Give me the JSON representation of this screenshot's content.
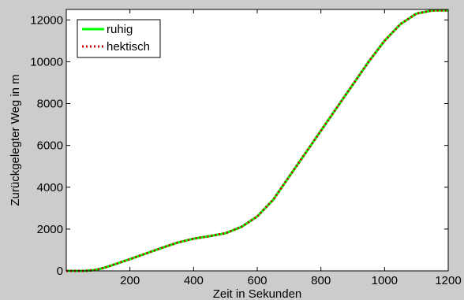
{
  "chart_data": {
    "type": "line",
    "title": "",
    "xlabel": "Zeit in Sekunden",
    "ylabel": "Zurückgelegter Weg in m",
    "xlim": [
      0,
      1200
    ],
    "ylim": [
      0,
      12500
    ],
    "x_ticks": [
      200,
      400,
      600,
      800,
      1000,
      1200
    ],
    "y_ticks": [
      0,
      2000,
      4000,
      6000,
      8000,
      10000,
      12000
    ],
    "grid": false,
    "legend_position": "top-left",
    "x": [
      0,
      60,
      90,
      120,
      150,
      200,
      250,
      300,
      350,
      400,
      450,
      500,
      550,
      600,
      650,
      700,
      750,
      800,
      850,
      900,
      950,
      1000,
      1050,
      1100,
      1150,
      1200
    ],
    "series": [
      {
        "name": "ruhig",
        "color": "#00ff00",
        "style": "solid",
        "values": [
          0,
          0,
          40,
          150,
          300,
          560,
          830,
          1100,
          1350,
          1540,
          1660,
          1800,
          2100,
          2600,
          3400,
          4500,
          5600,
          6700,
          7800,
          8900,
          10000,
          11000,
          11800,
          12300,
          12450,
          12450
        ]
      },
      {
        "name": "hektisch",
        "color": "#cc0000",
        "style": "dotted",
        "values": [
          0,
          0,
          40,
          150,
          300,
          560,
          830,
          1100,
          1350,
          1540,
          1660,
          1800,
          2100,
          2600,
          3400,
          4500,
          5600,
          6700,
          7800,
          8900,
          10000,
          11000,
          11800,
          12300,
          12450,
          12450
        ]
      }
    ]
  }
}
